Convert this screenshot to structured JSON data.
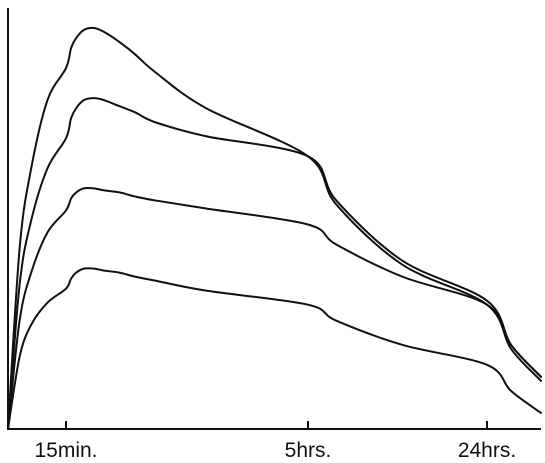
{
  "chart_data": {
    "type": "line",
    "title": "",
    "xlabel": "",
    "ylabel": "",
    "x_ticks": [
      {
        "label": "15min.",
        "value": 0.25
      },
      {
        "label": "5hrs.",
        "value": 5
      },
      {
        "label": "24hrs.",
        "value": 24
      }
    ],
    "xlim": [
      0,
      60
    ],
    "ylim": [
      0,
      100
    ],
    "grid": false,
    "legend": "none",
    "colors": {
      "line": "#111111",
      "axis": "#111111",
      "background": "#ffffff"
    },
    "series": [
      {
        "x": [
          0,
          0.05,
          0.1,
          0.17,
          0.25,
          0.35,
          0.45,
          0.6,
          0.8,
          1.0,
          1.3,
          1.6,
          2.0,
          3.0,
          5.0,
          8.0,
          15.0,
          24.0,
          40.0,
          60.0
        ],
        "y": [
          0,
          45,
          65,
          82,
          90,
          95,
          97.5,
          99.5,
          100,
          99,
          96.5,
          93.5,
          89,
          80,
          68,
          56,
          41,
          31,
          20,
          12
        ]
      },
      {
        "x": [
          0,
          0.05,
          0.1,
          0.17,
          0.25,
          0.35,
          0.45,
          0.6,
          0.8,
          1.0,
          1.3,
          1.6,
          2.0,
          3.0,
          5.0,
          8.0,
          15.0,
          24.0,
          40.0,
          60.0
        ],
        "y": [
          0,
          36,
          52,
          65,
          72.5,
          77.5,
          80,
          82,
          82.5,
          82,
          80.5,
          79,
          76.5,
          73,
          68,
          57,
          42,
          32,
          21,
          13
        ]
      },
      {
        "x": [
          0,
          0.05,
          0.1,
          0.17,
          0.25,
          0.35,
          0.45,
          0.6,
          0.8,
          1.0,
          1.3,
          1.6,
          2.0,
          3.0,
          5.0,
          8.0,
          15.0,
          24.0,
          40.0,
          60.0
        ],
        "y": [
          0,
          27,
          39,
          49,
          54.5,
          57.5,
          59,
          60,
          60,
          59.5,
          59,
          58,
          57,
          55,
          51,
          46,
          38,
          31,
          21,
          13
        ]
      },
      {
        "x": [
          0,
          0.05,
          0.1,
          0.17,
          0.25,
          0.35,
          0.45,
          0.6,
          0.8,
          1.0,
          1.3,
          1.6,
          2.0,
          3.0,
          5.0,
          8.0,
          15.0,
          24.0,
          40.0,
          60.0
        ],
        "y": [
          0,
          18,
          26,
          31.5,
          35,
          37.5,
          39,
          40,
          40,
          39.5,
          39,
          38,
          37,
          34.5,
          31,
          27,
          21,
          16,
          9.5,
          4
        ]
      }
    ]
  }
}
